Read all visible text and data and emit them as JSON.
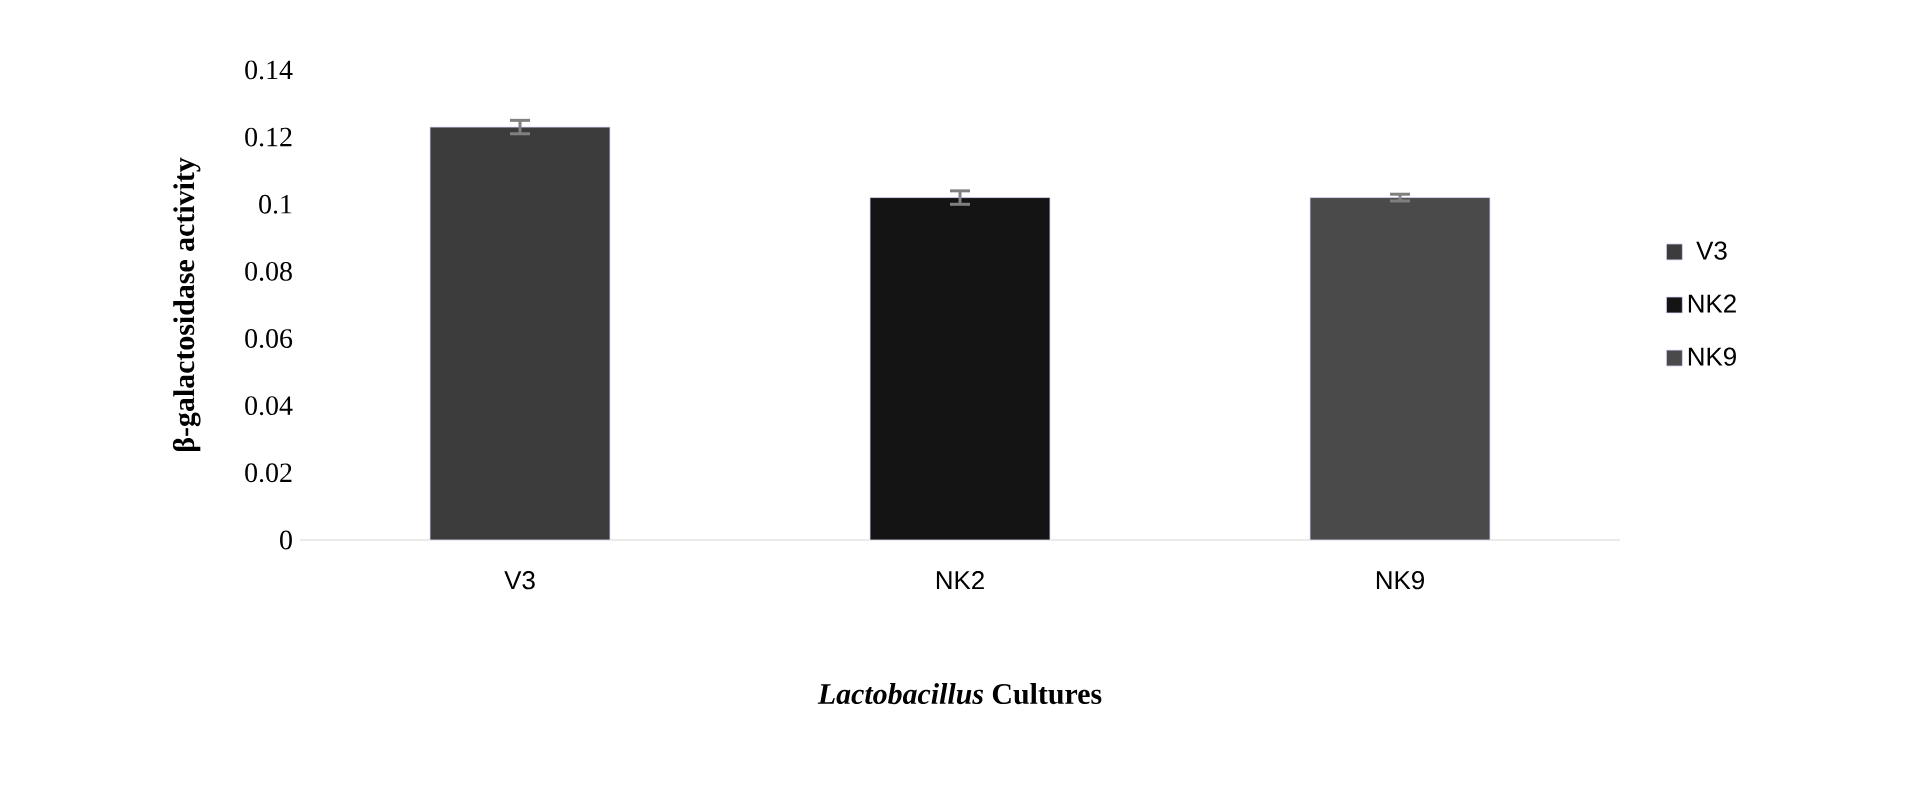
{
  "chart_data": {
    "type": "bar",
    "categories": [
      "V3",
      "NK2",
      "NK9"
    ],
    "series": [
      {
        "name": "V3",
        "color": "#3c3c3c",
        "values": [
          0.123,
          null,
          null
        ],
        "errors": [
          0.002,
          null,
          null
        ]
      },
      {
        "name": "NK2",
        "color": "#141414",
        "values": [
          null,
          0.102,
          null
        ],
        "errors": [
          null,
          0.002,
          null
        ]
      },
      {
        "name": "NK9",
        "color": "#4a4a4a",
        "values": [
          null,
          null,
          0.102
        ],
        "errors": [
          null,
          null,
          0.001
        ]
      }
    ],
    "ylim": [
      0,
      0.14
    ],
    "yticks": [
      0,
      0.02,
      0.04,
      0.06,
      0.08,
      0.1,
      0.12,
      0.14
    ],
    "xlabel": "*Lactobacillus* Cultures",
    "ylabel": "β-galactosidase activity",
    "legend": "right",
    "grid": false
  }
}
